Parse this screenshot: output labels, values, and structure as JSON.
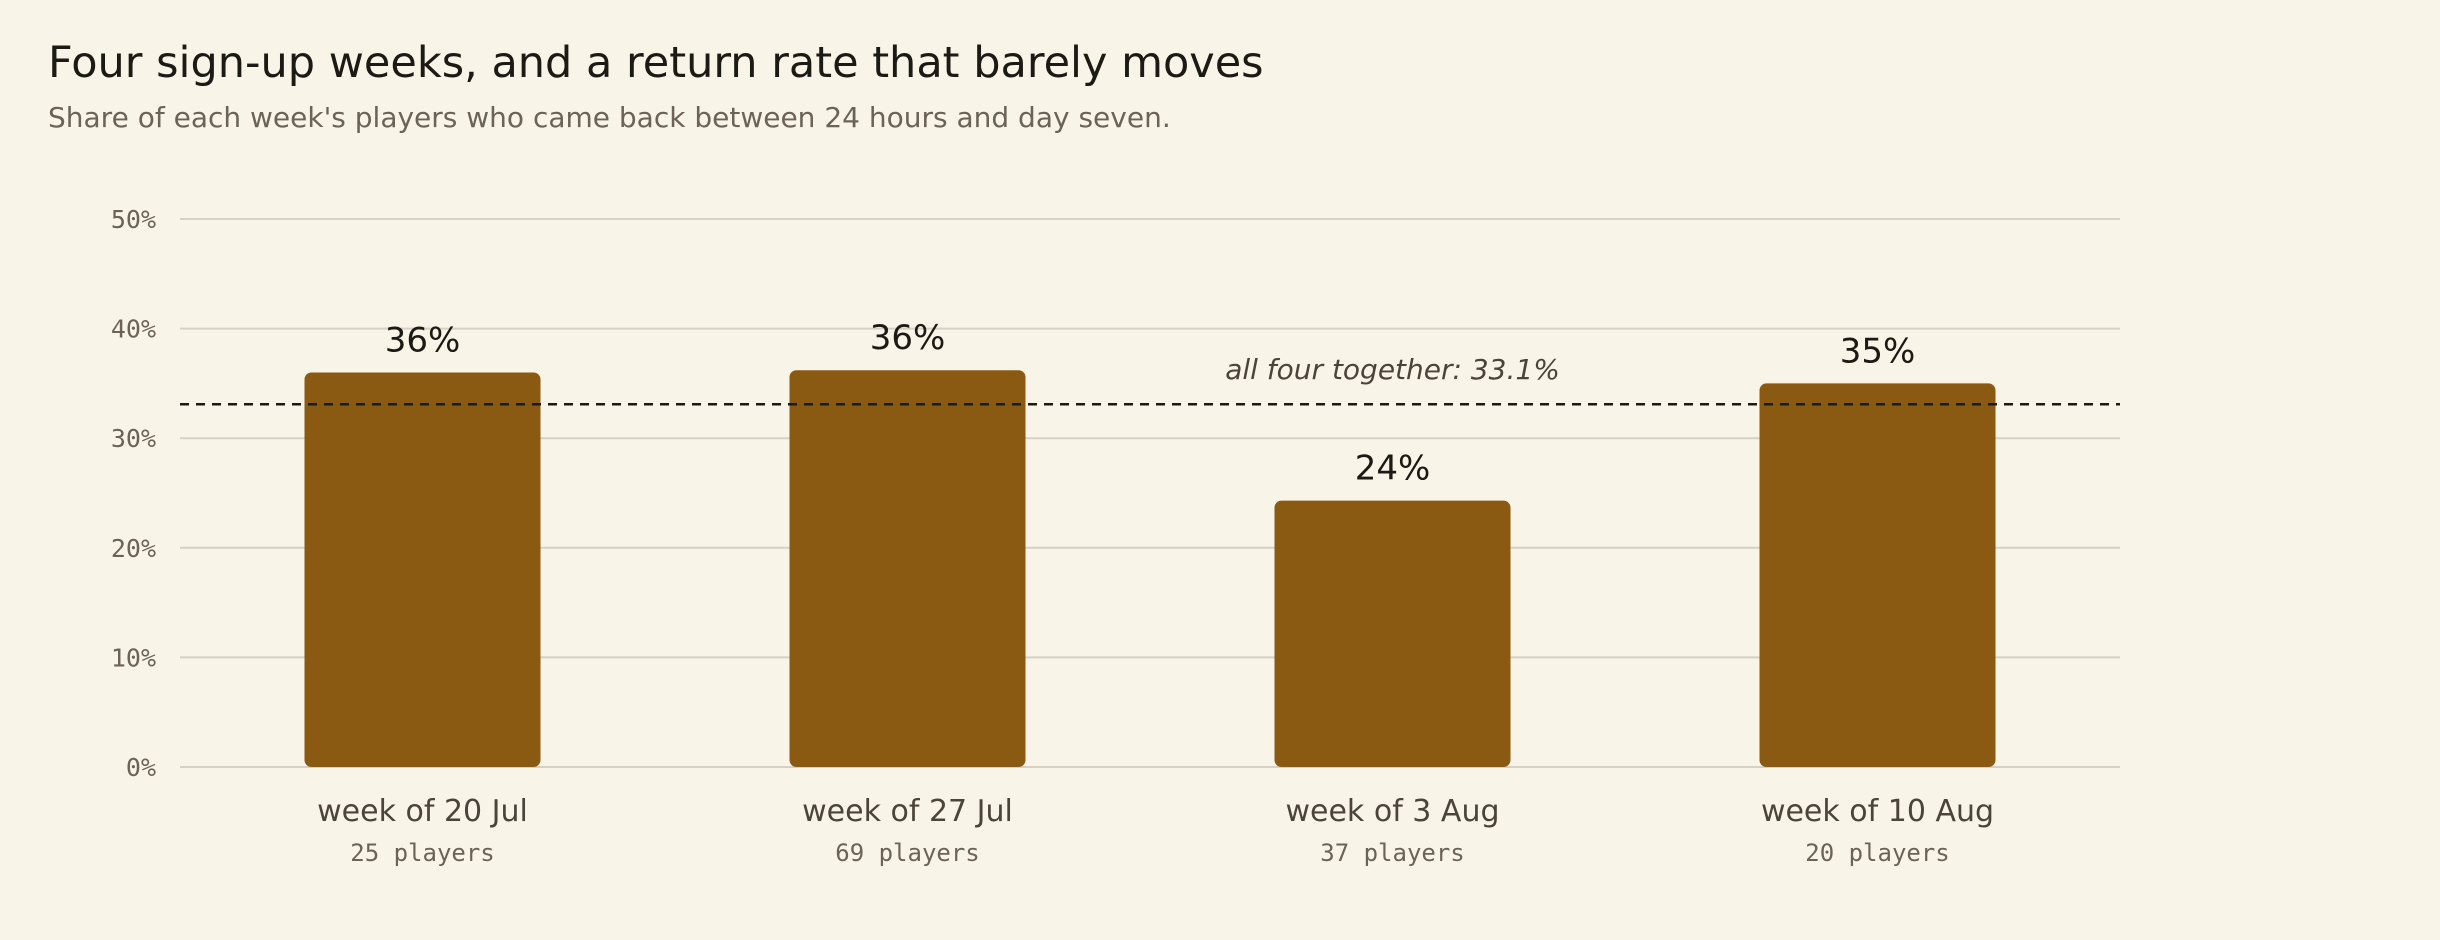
{
  "header": {
    "title": "Four sign-up weeks, and a return rate that barely moves",
    "subtitle": "Share of each week's players who came back between 24 hours and day seven."
  },
  "chart_data": {
    "type": "bar",
    "categories": [
      "week of 20 Jul",
      "week of 27 Jul",
      "week of 3 Aug",
      "week of 10 Aug"
    ],
    "values": [
      36,
      36.2,
      24.3,
      35
    ],
    "value_labels": [
      "36%",
      "36%",
      "24%",
      "35%"
    ],
    "category_sublabels": [
      "25 players",
      "69 players",
      "37 players",
      "20 players"
    ],
    "ylim": [
      0,
      50
    ],
    "yticks": [
      0,
      10,
      20,
      30,
      40,
      50
    ],
    "ytick_labels": [
      "0%",
      "10%",
      "20%",
      "30%",
      "40%",
      "50%"
    ],
    "grid": true,
    "reference_line": {
      "value": 33.1,
      "label": "all four together: 33.1%"
    }
  },
  "colors": {
    "bar": "#8a5a12",
    "grid": "#d6d1c4",
    "reference": "#1c1a14"
  }
}
